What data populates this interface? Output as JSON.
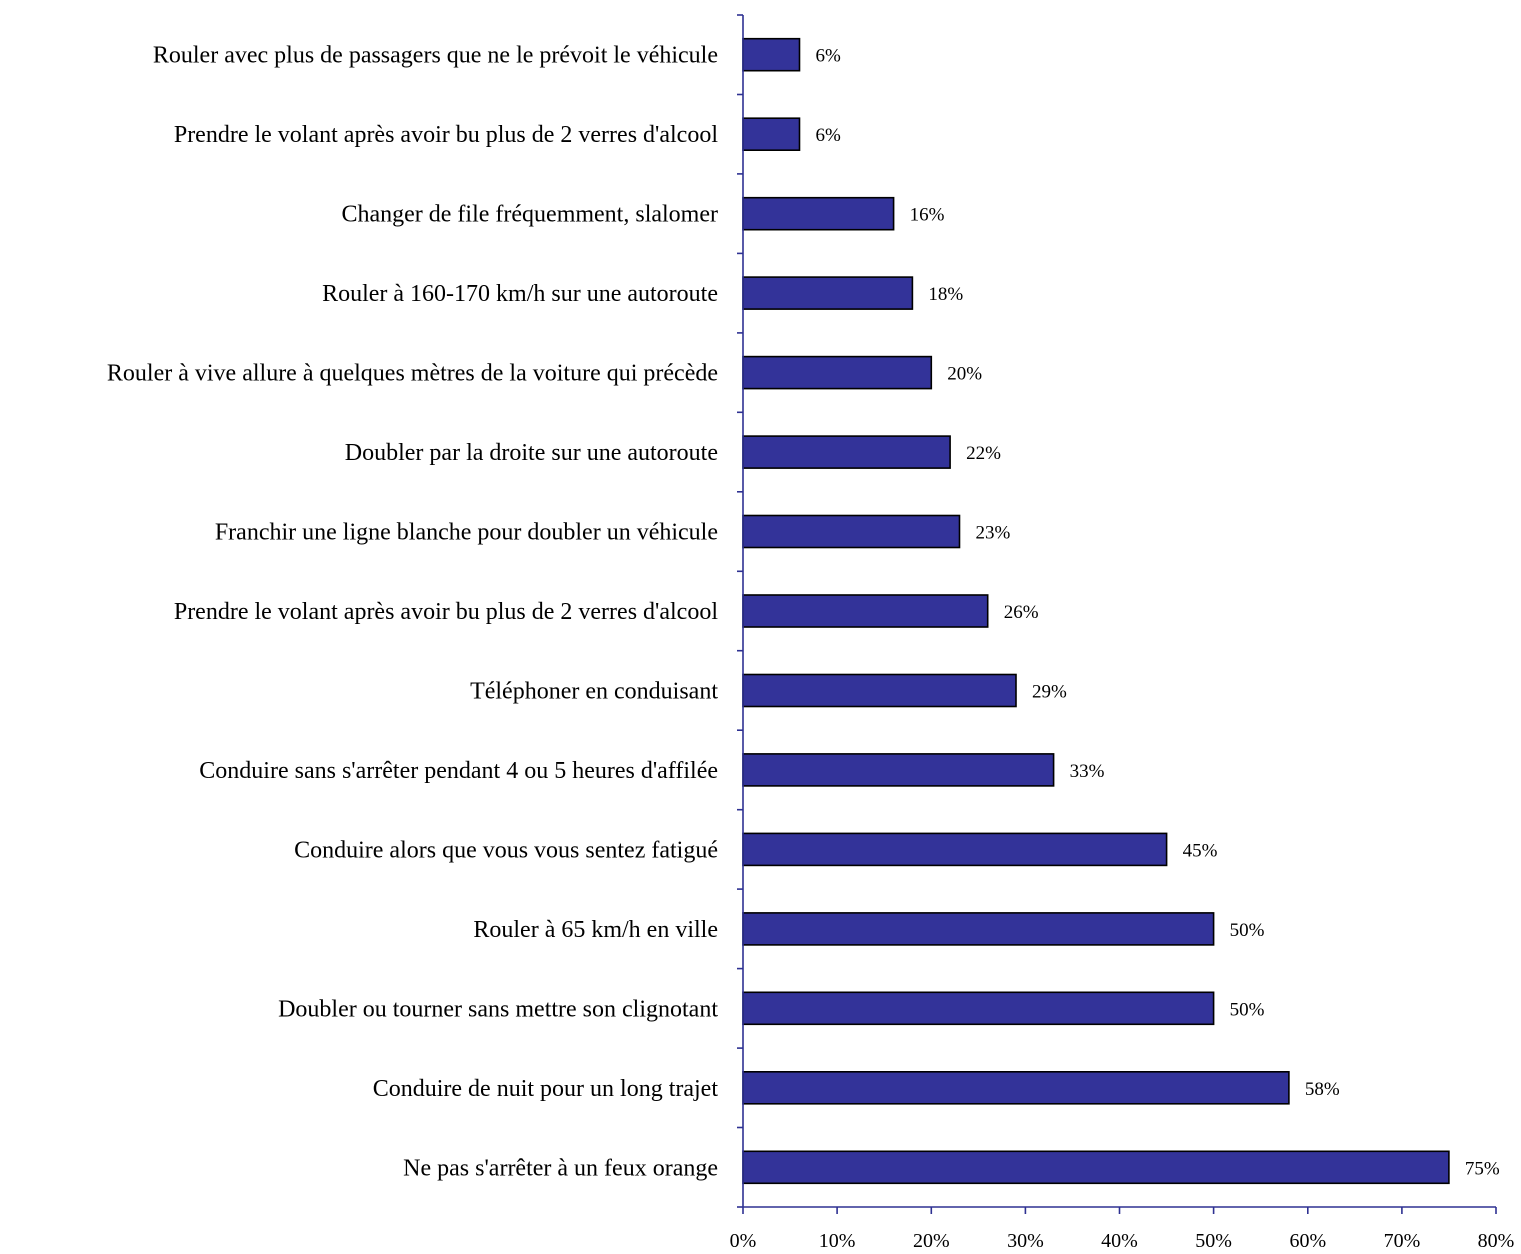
{
  "chart_data": {
    "type": "bar",
    "orientation": "horizontal",
    "title": "",
    "xlabel": "",
    "ylabel": "",
    "xlim": [
      0,
      80
    ],
    "value_unit": "%",
    "x_ticks": [
      "0%",
      "10%",
      "20%",
      "30%",
      "40%",
      "50%",
      "60%",
      "70%",
      "80%"
    ],
    "bar_color": "#333399",
    "grid": false,
    "legend": "none",
    "categories": [
      "Rouler avec plus de passagers que ne le prévoit le véhicule",
      "Prendre le volant après avoir bu plus de 2 verres d'alcool",
      "Changer de file fréquemment, slalomer",
      "Rouler à 160-170 km/h sur une autoroute",
      "Rouler à vive allure à quelques mètres de la voiture qui précède",
      "Doubler par la droite sur une autoroute",
      "Franchir une ligne blanche pour doubler un véhicule",
      "Prendre le volant après avoir bu plus de 2 verres d'alcool",
      "Téléphoner en conduisant",
      "Conduire sans s'arrêter pendant 4 ou 5 heures d'affilée",
      "Conduire alors que vous vous sentez fatigué",
      "Rouler à 65 km/h en ville",
      "Doubler ou tourner sans mettre son clignotant",
      "Conduire de nuit pour un long trajet",
      "Ne pas s'arrêter à un feux orange"
    ],
    "values": [
      6,
      6,
      16,
      18,
      20,
      22,
      23,
      26,
      29,
      33,
      45,
      50,
      50,
      58,
      75
    ],
    "data_labels": [
      "6%",
      "6%",
      "16%",
      "18%",
      "20%",
      "22%",
      "23%",
      "26%",
      "29%",
      "33%",
      "45%",
      "50%",
      "50%",
      "58%",
      "75%"
    ]
  }
}
